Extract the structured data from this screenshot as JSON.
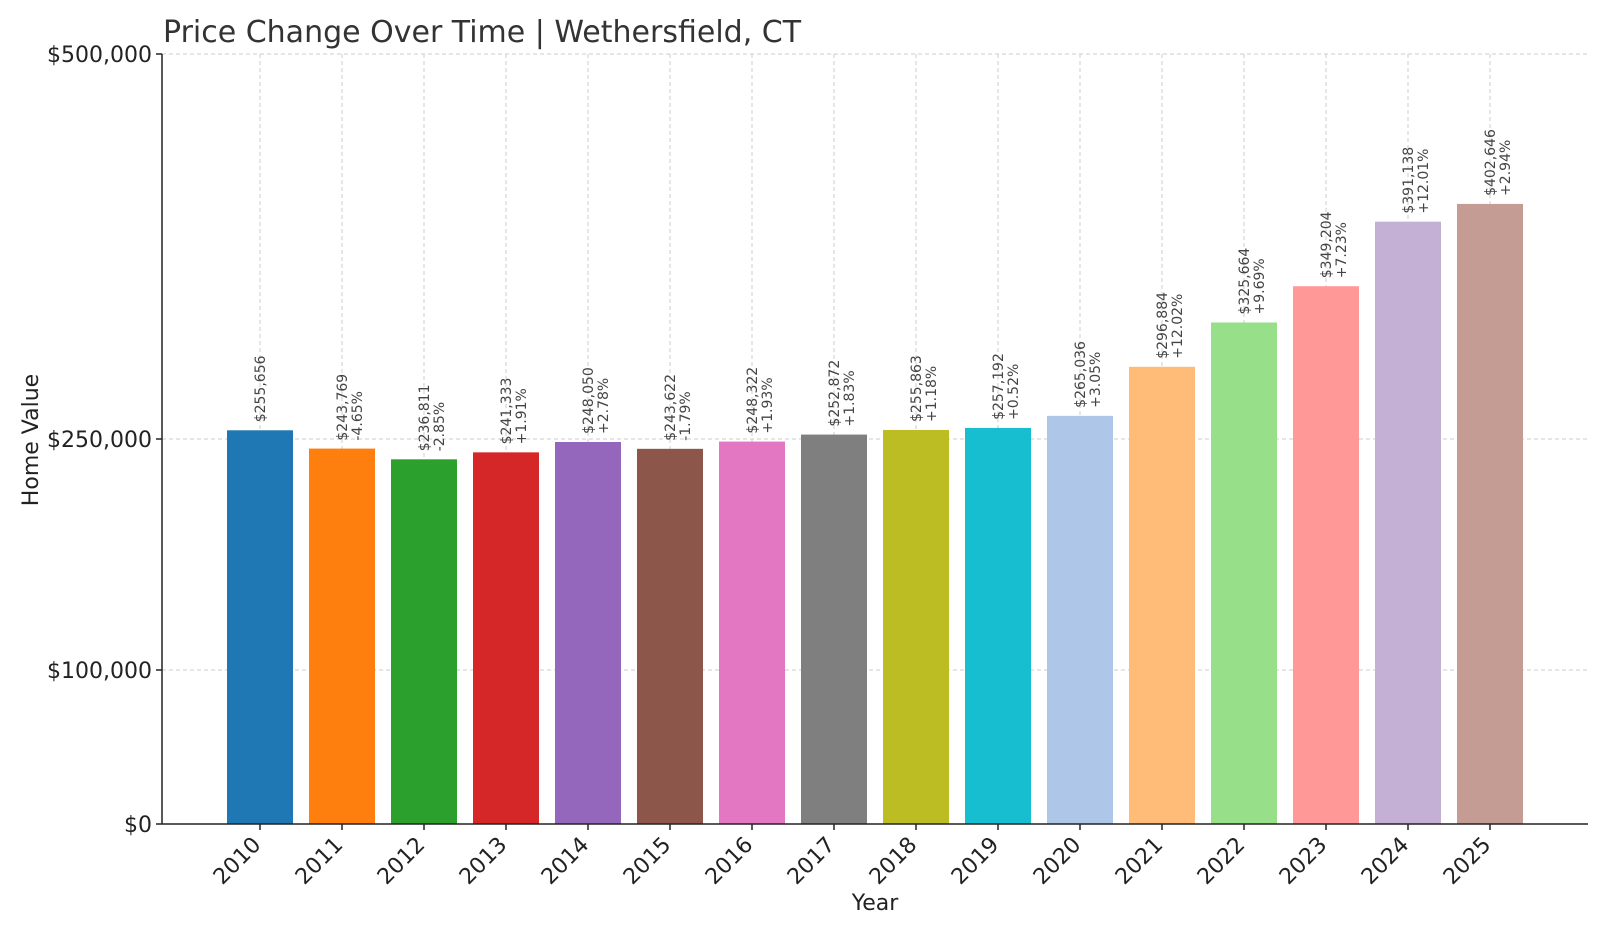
{
  "chart_data": {
    "type": "bar",
    "title": "Price Change Over Time | Wethersfield, CT",
    "xlabel": "Year",
    "ylabel": "Home Value",
    "grid": true,
    "ylim": [
      0,
      500000
    ],
    "yscale": "piecewise",
    "yticks": [
      0,
      100000,
      250000,
      500000
    ],
    "ytick_labels": [
      "$0",
      "$100,000",
      "$250,000",
      "$500,000"
    ],
    "categories": [
      "2010",
      "2011",
      "2012",
      "2013",
      "2014",
      "2015",
      "2016",
      "2017",
      "2018",
      "2019",
      "2020",
      "2021",
      "2022",
      "2023",
      "2024",
      "2025"
    ],
    "values": [
      255656,
      243769,
      236811,
      241333,
      248050,
      243622,
      248322,
      252872,
      255863,
      257192,
      265036,
      296884,
      325664,
      349204,
      391138,
      402646
    ],
    "value_labels": [
      "$255,656",
      "$243,769",
      "$236,811",
      "$241,333",
      "$248,050",
      "$243,622",
      "$248,322",
      "$252,872",
      "$255,863",
      "$257,192",
      "$265,036",
      "$296,884",
      "$325,664",
      "$349,204",
      "$391,138",
      "$402,646"
    ],
    "change_labels": [
      "",
      "-4.65%",
      "-2.85%",
      "+1.91%",
      "+2.78%",
      "-1.79%",
      "+1.93%",
      "+1.83%",
      "+1.18%",
      "+0.52%",
      "+3.05%",
      "+12.02%",
      "+9.69%",
      "+7.23%",
      "+12.01%",
      "+2.94%"
    ],
    "colors": [
      "#1f77b4",
      "#ff7f0e",
      "#2ca02c",
      "#d62728",
      "#9467bd",
      "#8c564b",
      "#e377c2",
      "#7f7f7f",
      "#bcbd22",
      "#17becf",
      "#aec7e8",
      "#ffbb78",
      "#98df8a",
      "#ff9896",
      "#c5b0d5",
      "#c49c94"
    ]
  }
}
